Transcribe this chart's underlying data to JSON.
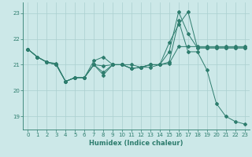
{
  "title": "",
  "xlabel": "Humidex (Indice chaleur)",
  "bg_color": "#cce8e8",
  "grid_color": "#aacfcf",
  "line_color": "#2e7d6e",
  "xlim": [
    -0.5,
    23.5
  ],
  "ylim": [
    18.5,
    23.4
  ],
  "yticks": [
    19,
    20,
    21,
    22,
    23
  ],
  "xticks": [
    0,
    1,
    2,
    3,
    4,
    5,
    6,
    7,
    8,
    9,
    10,
    11,
    12,
    13,
    14,
    15,
    16,
    17,
    18,
    19,
    20,
    21,
    22,
    23
  ],
  "line1_x": [
    0,
    1,
    2,
    3,
    4,
    5,
    6,
    7,
    8,
    9,
    10,
    11,
    12,
    13,
    14,
    15,
    16,
    17,
    18,
    19,
    20,
    21,
    22,
    23
  ],
  "line1_y": [
    21.6,
    21.3,
    21.1,
    21.0,
    20.35,
    20.5,
    20.5,
    21.0,
    20.7,
    21.0,
    21.0,
    20.85,
    20.9,
    20.9,
    21.0,
    21.1,
    22.7,
    21.5,
    21.5,
    20.8,
    19.5,
    19.0,
    18.8,
    18.7
  ],
  "line2_x": [
    0,
    1,
    2,
    3,
    4,
    5,
    6,
    7,
    8,
    9,
    10,
    11,
    12,
    13,
    14,
    15,
    16,
    17,
    18,
    19,
    20,
    21,
    22,
    23
  ],
  "line2_y": [
    21.6,
    21.3,
    21.1,
    21.0,
    20.35,
    20.5,
    20.5,
    21.15,
    21.3,
    21.0,
    21.0,
    20.85,
    20.9,
    21.0,
    21.0,
    21.85,
    22.55,
    23.05,
    21.65,
    21.65,
    21.65,
    21.65,
    21.65,
    21.65
  ],
  "line3_x": [
    0,
    1,
    2,
    3,
    4,
    5,
    6,
    7,
    8,
    9,
    10,
    11,
    12,
    13,
    14,
    15,
    16,
    17,
    18,
    19,
    20,
    21,
    22,
    23
  ],
  "line3_y": [
    21.6,
    21.3,
    21.1,
    21.0,
    20.35,
    20.5,
    20.5,
    21.0,
    20.6,
    21.0,
    21.0,
    20.85,
    20.9,
    21.0,
    21.0,
    21.5,
    23.05,
    22.2,
    21.65,
    21.65,
    21.65,
    21.65,
    21.65,
    21.65
  ],
  "line4_x": [
    0,
    1,
    2,
    3,
    4,
    5,
    6,
    7,
    8,
    9,
    10,
    11,
    12,
    13,
    14,
    15,
    16,
    17,
    18,
    19,
    20,
    21,
    22,
    23
  ],
  "line4_y": [
    21.6,
    21.3,
    21.1,
    21.05,
    20.35,
    20.5,
    20.5,
    21.0,
    20.95,
    21.0,
    21.0,
    21.0,
    20.9,
    21.0,
    21.0,
    21.05,
    21.7,
    21.7,
    21.7,
    21.7,
    21.7,
    21.7,
    21.7,
    21.7
  ],
  "tick_fontsize": 5.0,
  "xlabel_fontsize": 6.0
}
